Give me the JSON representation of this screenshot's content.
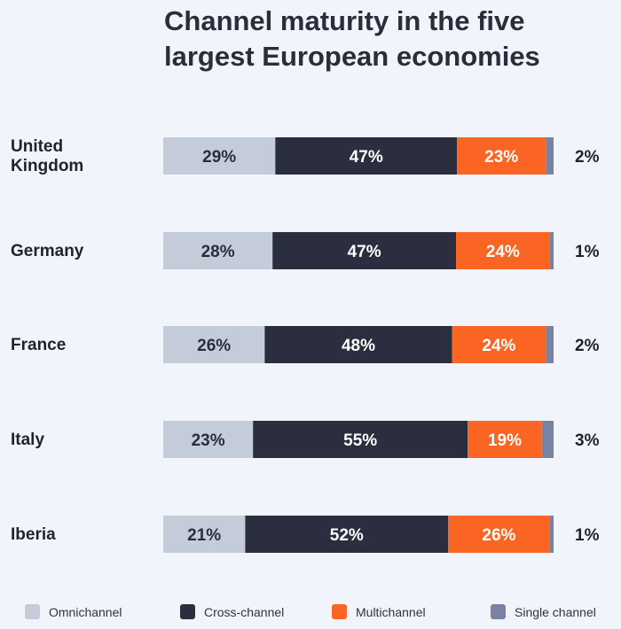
{
  "chart_data": {
    "type": "bar",
    "orientation": "horizontal",
    "stacked": true,
    "title": "Channel maturity in the five largest European economies",
    "categories": [
      "United Kingdom",
      "Germany",
      "France",
      "Italy",
      "Iberia"
    ],
    "category_lines": [
      [
        "United",
        "Kingdom"
      ],
      [
        "Germany"
      ],
      [
        "France"
      ],
      [
        "Italy"
      ],
      [
        "Iberia"
      ]
    ],
    "series": [
      {
        "name": "Omnichannel",
        "color": "#c5ccd9",
        "label_color": "#2a2d3a",
        "values": [
          29,
          28,
          26,
          23,
          21
        ]
      },
      {
        "name": "Cross-channel",
        "color": "#2b2e3e",
        "label_color": "#ffffff",
        "values": [
          47,
          47,
          48,
          55,
          52
        ]
      },
      {
        "name": "Multichannel",
        "color": "#fb6524",
        "label_color": "#ffffff",
        "values": [
          23,
          24,
          24,
          19,
          26
        ]
      },
      {
        "name": "Single channel",
        "color": "#7a82a2",
        "label_color": "#1f2330",
        "values": [
          2,
          1,
          2,
          3,
          1
        ]
      }
    ],
    "unit": "%",
    "legend_position": "bottom",
    "grid": false
  }
}
